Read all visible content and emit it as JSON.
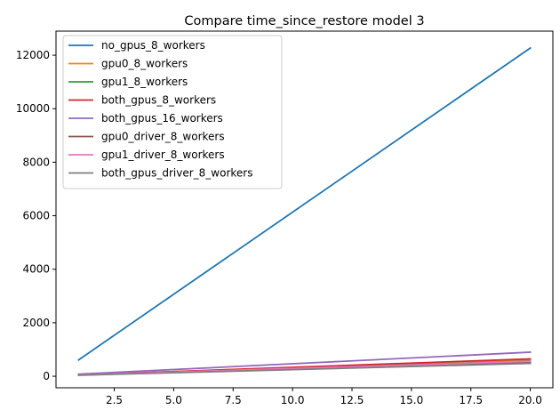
{
  "chart_data": {
    "type": "line",
    "title": "Compare time_since_restore model 3",
    "xlabel": "",
    "ylabel": "",
    "x": [
      1,
      20
    ],
    "xlim": [
      0.05,
      20.95
    ],
    "ylim": [
      -430,
      12900
    ],
    "xticks": [
      2.5,
      5.0,
      7.5,
      10.0,
      12.5,
      15.0,
      17.5,
      20.0
    ],
    "xtick_labels": [
      "2.5",
      "5.0",
      "7.5",
      "10.0",
      "12.5",
      "15.0",
      "17.5",
      "20.0"
    ],
    "yticks": [
      0,
      2000,
      4000,
      6000,
      8000,
      10000,
      12000
    ],
    "ytick_labels": [
      "0",
      "2000",
      "4000",
      "6000",
      "8000",
      "10000",
      "12000"
    ],
    "grid": false,
    "legend_position": "upper-left",
    "series": [
      {
        "name": "no_gpus_8_workers",
        "color": "#1f77b4",
        "values": [
          610,
          12270
        ]
      },
      {
        "name": "gpu0_8_workers",
        "color": "#ff7f0e",
        "values": [
          60,
          610
        ]
      },
      {
        "name": "gpu1_8_workers",
        "color": "#2ca02c",
        "values": [
          55,
          570
        ]
      },
      {
        "name": "both_gpus_8_workers",
        "color": "#d62728",
        "values": [
          50,
          650
        ]
      },
      {
        "name": "both_gpus_16_workers",
        "color": "#9467bd",
        "values": [
          80,
          900
        ]
      },
      {
        "name": "gpu0_driver_8_workers",
        "color": "#8c564b",
        "values": [
          45,
          520
        ]
      },
      {
        "name": "gpu1_driver_8_workers",
        "color": "#e377c2",
        "values": [
          50,
          560
        ]
      },
      {
        "name": "both_gpus_driver_8_workers",
        "color": "#7f7f7f",
        "values": [
          40,
          480
        ]
      }
    ]
  }
}
